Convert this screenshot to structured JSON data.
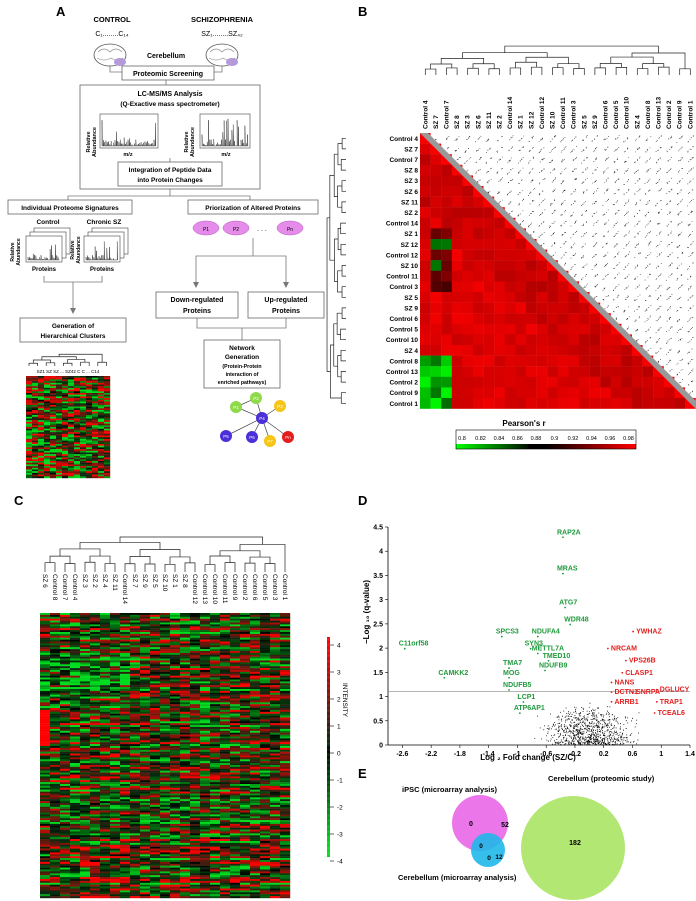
{
  "panel_labels": {
    "a": "A",
    "b": "B",
    "c": "C",
    "d": "D",
    "e": "E"
  },
  "flow": {
    "control": "CONTROL",
    "control_range": "C₁........C₁₄",
    "schizophrenia": "SCHIZOPHRENIA",
    "sz_range": "SZ₁........SZ₄₂",
    "cerebellum": "Cerebellum",
    "screening": "Proteomic Screening",
    "lcms_1": "LC-MS/MS Analysis",
    "lcms_2": "(Q-Exactive mass spectrometer)",
    "rel": "Relative",
    "abund": "Abundance",
    "mz": "m/z",
    "integration_1": "Integration of Peptide Data",
    "integration_2": "into Protein Changes",
    "individual": "Individual Proteome Signatures",
    "priorization": "Priorization of Altered Proteins",
    "control_label": "Control",
    "chronic": "Chronic SZ",
    "proteins": "Proteins",
    "p1": "P1",
    "p2": "P2",
    "pn": "Pn",
    "dots": ". . .",
    "down_1": "Down-regulated",
    "down_2": "Proteins",
    "up_1": "Up-regulated",
    "up_2": "Proteins",
    "gen_1": "Generation of",
    "gen_2": "Hierarchical Clusters",
    "net_1": "Network",
    "net_2": "Generation",
    "net_3": "(Protein-Protein",
    "net_4": "interaction of",
    "net_5": "enriched pathways)",
    "heat_cols": "SZ1 SZ SZ ... SZ42 C C ... C14",
    "nodes": [
      "P1",
      "P2",
      "P3",
      "P4",
      "P5",
      "P6",
      "P7",
      "Pn"
    ]
  },
  "panel_b": {
    "row_labels": [
      "Control 4",
      "SZ 7",
      "Control 7",
      "SZ 8",
      "SZ 3",
      "SZ 6",
      "SZ 11",
      "SZ 2",
      "Control 14",
      "SZ 1",
      "SZ 12",
      "Control 12",
      "SZ 10",
      "Control 11",
      "Control 3",
      "SZ 5",
      "SZ 9",
      "Control 6",
      "Control 5",
      "Control 10",
      "SZ 4",
      "Control 8",
      "Control 13",
      "Control 2",
      "Control 9",
      "Control 1"
    ],
    "col_labels": [
      "Control 4",
      "SZ 7",
      "Control 7",
      "SZ 8",
      "SZ 3",
      "SZ 6",
      "SZ 11",
      "SZ 2",
      "Control 14",
      "SZ 1",
      "SZ 12",
      "Control 12",
      "SZ 10",
      "Control 11",
      "Control 3",
      "SZ 5",
      "SZ 9",
      "Control 6",
      "Control 5",
      "Control 10",
      "SZ 4",
      "Control 8",
      "Control 13",
      "Control 2",
      "Control 9",
      "Control 1"
    ],
    "legend_title": "Pearson's r",
    "legend_ticks": [
      "0.8",
      "0.82",
      "0.84",
      "0.86",
      "0.88",
      "0.9",
      "0.92",
      "0.94",
      "0.96",
      "0.98"
    ]
  },
  "panel_c": {
    "col_labels": [
      "SZ 6",
      "Control 8",
      "Control 7",
      "Control 4",
      "SZ 3",
      "SZ 2",
      "SZ 4",
      "SZ 11",
      "Control 14",
      "SZ 7",
      "SZ 9",
      "SZ 5",
      "SZ 10",
      "SZ 1",
      "SZ 8",
      "Control 12",
      "Control 13",
      "Control 10",
      "Control 11",
      "Control 9",
      "Control 2",
      "Control 6",
      "Control 5",
      "Control 3",
      "Control 1"
    ],
    "scale_label": "INTENSITY",
    "scale_ticks": [
      "4",
      "3",
      "2",
      "1",
      "0",
      "-1",
      "-2",
      "-3",
      "-4"
    ]
  },
  "chart_data": {
    "type": "scatter",
    "xlabel": "Log ₂ Fold change (SZ/C)",
    "ylabel": "−Log ₁₀ (q-value)",
    "xlim": [
      -2.8,
      1.4
    ],
    "ylim": [
      0,
      4.5
    ],
    "x_ticks": [
      "-2.6",
      "-2.2",
      "-1.8",
      "-1.4",
      "-1",
      "-0.6",
      "-0.2",
      "0.2",
      "0.6",
      "1",
      "1.4"
    ],
    "y_ticks": [
      "0",
      "0.5",
      "1",
      "1.5",
      "2",
      "2.5",
      "3",
      "3.5",
      "4",
      "4.5"
    ],
    "threshold_y": 1.1,
    "down_color": "#1f9a3c",
    "up_color": "#e21d1d",
    "down_labels": [
      {
        "label": "RAP2A",
        "x": -0.45,
        "y": 4.35
      },
      {
        "label": "MRAS",
        "x": -0.45,
        "y": 3.6
      },
      {
        "label": "ATG7",
        "x": -0.42,
        "y": 2.9
      },
      {
        "label": "WDR48",
        "x": -0.35,
        "y": 2.55
      },
      {
        "label": "SPCS3",
        "x": -1.3,
        "y": 2.3
      },
      {
        "label": "NDUFA4",
        "x": -0.8,
        "y": 2.3
      },
      {
        "label": "SYN3",
        "x": -0.9,
        "y": 2.05
      },
      {
        "label": "METTL7A",
        "x": -0.8,
        "y": 1.95
      },
      {
        "label": "TMED10",
        "x": -0.65,
        "y": 1.8
      },
      {
        "label": "NDUFB9",
        "x": -0.7,
        "y": 1.6
      },
      {
        "label": "TMA7",
        "x": -1.2,
        "y": 1.65
      },
      {
        "label": "MOG",
        "x": -1.2,
        "y": 1.45
      },
      {
        "label": "NDUFB5",
        "x": -1.2,
        "y": 1.2
      },
      {
        "label": "LCP1",
        "x": -1.0,
        "y": 0.95
      },
      {
        "label": "ATP6AP1",
        "x": -1.05,
        "y": 0.72
      },
      {
        "label": "C11orf58",
        "x": -2.65,
        "y": 2.05
      },
      {
        "label": "CAMKK2",
        "x": -2.1,
        "y": 1.45
      }
    ],
    "up_labels": [
      {
        "label": "YWHAZ",
        "x": 0.65,
        "y": 2.3
      },
      {
        "label": "NRCAM",
        "x": 0.3,
        "y": 1.95
      },
      {
        "label": "VPS26B",
        "x": 0.55,
        "y": 1.7
      },
      {
        "label": "CLASP1",
        "x": 0.5,
        "y": 1.45
      },
      {
        "label": "NANS",
        "x": 0.35,
        "y": 1.25
      },
      {
        "label": "DCTN1",
        "x": 0.35,
        "y": 1.05
      },
      {
        "label": "SNRPA",
        "x": 0.65,
        "y": 1.05
      },
      {
        "label": "DGLUCY",
        "x": 0.98,
        "y": 1.1
      },
      {
        "label": "ARRB1",
        "x": 0.35,
        "y": 0.85
      },
      {
        "label": "TRAP1",
        "x": 0.98,
        "y": 0.85
      },
      {
        "label": "TCEAL6",
        "x": 0.95,
        "y": 0.62
      }
    ]
  },
  "panel_e": {
    "ipsc": "iPSC (microarray analysis)",
    "proteomic": "Cerebellum (proteomic study)",
    "micro": "Cerebellum (microarray analysis)",
    "n_pink": "0",
    "n_pink_green": "52",
    "n_green": "182",
    "n_blue": "0",
    "n_center": "0",
    "n_blue_green": "12",
    "pink": "#e85ee6",
    "green": "#a4e35c",
    "blue": "#1fb8e8"
  }
}
